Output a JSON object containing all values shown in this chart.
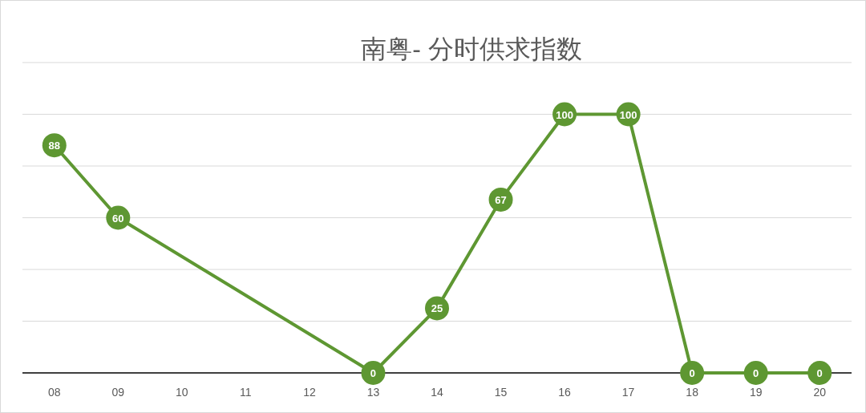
{
  "chart_data": {
    "type": "line",
    "title": "南粤- 分时供求指数",
    "categories": [
      "08",
      "09",
      "10",
      "11",
      "12",
      "13",
      "14",
      "15",
      "16",
      "17",
      "18",
      "19",
      "20"
    ],
    "series": [
      {
        "color": "#5e9732",
        "values": [
          88,
          60,
          null,
          null,
          null,
          0,
          25,
          67,
          100,
          100,
          0,
          0,
          0
        ]
      }
    ],
    "ylim": [
      0,
      120
    ],
    "yticks": [
      {
        "value": 0,
        "label": null
      },
      {
        "value": 20,
        "label": null
      },
      {
        "value": 40,
        "label": null
      },
      {
        "value": 60,
        "label": null
      },
      {
        "value": 80,
        "label": null
      },
      {
        "value": 100,
        "label": null
      },
      {
        "value": 120,
        "label": null
      }
    ],
    "tick_labels": "x",
    "grid": "y",
    "data_labels": true,
    "marker": "circle",
    "line_style": "solid"
  }
}
